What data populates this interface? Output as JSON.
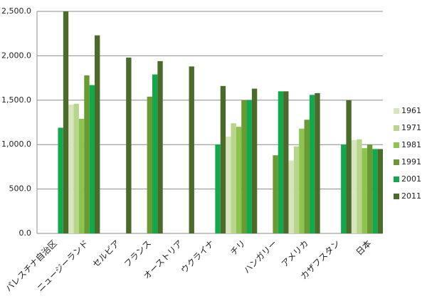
{
  "chart_data": {
    "type": "bar",
    "categories": [
      "パレスチナ自治区",
      "ニュージーランド",
      "セルビア",
      "フランス",
      "オーストリア",
      "ウクライナ",
      "チリ",
      "ハンガリー",
      "アメリカ",
      "カザフスタン",
      "日本"
    ],
    "series": [
      {
        "name": "1961",
        "color": "#d7e4bd",
        "values": [
          null,
          1450,
          null,
          null,
          null,
          null,
          1090,
          null,
          820,
          null,
          1050
        ]
      },
      {
        "name": "1971",
        "color": "#b7d68b",
        "values": [
          null,
          1460,
          null,
          null,
          null,
          null,
          1240,
          null,
          980,
          null,
          1060
        ]
      },
      {
        "name": "1981",
        "color": "#8dc450",
        "values": [
          null,
          1290,
          null,
          null,
          null,
          null,
          1200,
          null,
          1180,
          null,
          960
        ]
      },
      {
        "name": "1991",
        "color": "#6b9a33",
        "values": [
          null,
          1780,
          null,
          1540,
          null,
          null,
          1500,
          880,
          1280,
          null,
          1000
        ]
      },
      {
        "name": "2001",
        "color": "#12a84c",
        "values": [
          1190,
          1670,
          null,
          1790,
          null,
          1000,
          1500,
          1600,
          1560,
          1000,
          950
        ]
      },
      {
        "name": "2011",
        "color": "#4b6b2b",
        "values": [
          2500,
          2230,
          1980,
          1940,
          1880,
          1660,
          1630,
          1600,
          1580,
          1500,
          950
        ]
      }
    ],
    "ylim": [
      0,
      2500
    ],
    "yticks": [
      {
        "value": 0,
        "label": "0.0"
      },
      {
        "value": 500,
        "label": "500.0"
      },
      {
        "value": 1000,
        "label": "1,000.0"
      },
      {
        "value": 1500,
        "label": "1,500.0"
      },
      {
        "value": 2000,
        "label": "2,000.0"
      },
      {
        "value": 2500,
        "label": "2,500.0"
      }
    ],
    "grid": true,
    "legend": "right"
  }
}
